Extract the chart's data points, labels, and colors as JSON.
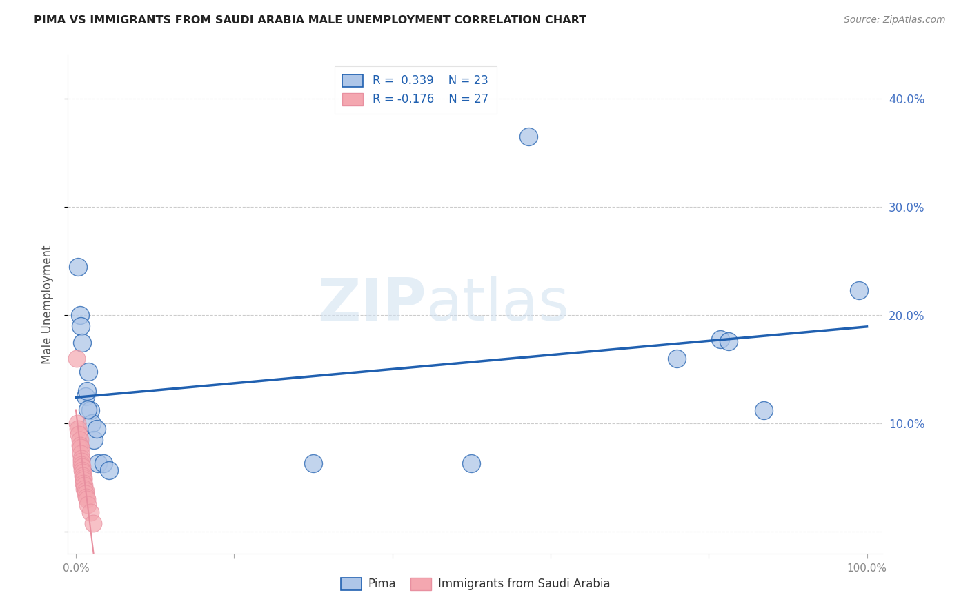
{
  "title": "PIMA VS IMMIGRANTS FROM SAUDI ARABIA MALE UNEMPLOYMENT CORRELATION CHART",
  "source": "Source: ZipAtlas.com",
  "ylabel": "Male Unemployment",
  "xlim": [
    -0.01,
    1.02
  ],
  "ylim": [
    -0.02,
    0.44
  ],
  "yticks": [
    0.0,
    0.1,
    0.2,
    0.3,
    0.4
  ],
  "ytick_labels": [
    "",
    "10.0%",
    "20.0%",
    "30.0%",
    "40.0%"
  ],
  "xticks": [
    0.0,
    0.2,
    0.4,
    0.6,
    0.8,
    1.0
  ],
  "xtick_labels": [
    "0.0%",
    "",
    "",
    "",
    "",
    "100.0%"
  ],
  "pima_R": 0.339,
  "pima_N": 23,
  "saudi_R": -0.176,
  "saudi_N": 27,
  "pima_color": "#aec6e8",
  "saudi_color": "#f4a7b0",
  "line_pima_color": "#2060b0",
  "line_saudi_color": "#e890a0",
  "watermark_zip": "ZIP",
  "watermark_atlas": "atlas",
  "pima_points": [
    [
      0.003,
      0.245
    ],
    [
      0.005,
      0.2
    ],
    [
      0.006,
      0.19
    ],
    [
      0.008,
      0.175
    ],
    [
      0.012,
      0.125
    ],
    [
      0.014,
      0.13
    ],
    [
      0.016,
      0.148
    ],
    [
      0.018,
      0.112
    ],
    [
      0.02,
      0.1
    ],
    [
      0.023,
      0.085
    ],
    [
      0.026,
      0.095
    ],
    [
      0.015,
      0.113
    ],
    [
      0.028,
      0.063
    ],
    [
      0.035,
      0.063
    ],
    [
      0.042,
      0.057
    ],
    [
      0.3,
      0.063
    ],
    [
      0.5,
      0.063
    ],
    [
      0.572,
      0.365
    ],
    [
      0.76,
      0.16
    ],
    [
      0.815,
      0.178
    ],
    [
      0.825,
      0.176
    ],
    [
      0.87,
      0.112
    ],
    [
      0.99,
      0.223
    ]
  ],
  "saudi_points": [
    [
      0.001,
      0.16
    ],
    [
      0.002,
      0.1
    ],
    [
      0.003,
      0.095
    ],
    [
      0.004,
      0.09
    ],
    [
      0.005,
      0.085
    ],
    [
      0.005,
      0.08
    ],
    [
      0.006,
      0.078
    ],
    [
      0.006,
      0.072
    ],
    [
      0.007,
      0.068
    ],
    [
      0.007,
      0.065
    ],
    [
      0.007,
      0.062
    ],
    [
      0.008,
      0.06
    ],
    [
      0.008,
      0.057
    ],
    [
      0.009,
      0.055
    ],
    [
      0.009,
      0.052
    ],
    [
      0.01,
      0.05
    ],
    [
      0.01,
      0.048
    ],
    [
      0.01,
      0.045
    ],
    [
      0.011,
      0.043
    ],
    [
      0.011,
      0.04
    ],
    [
      0.012,
      0.038
    ],
    [
      0.012,
      0.035
    ],
    [
      0.013,
      0.032
    ],
    [
      0.014,
      0.03
    ],
    [
      0.015,
      0.025
    ],
    [
      0.018,
      0.018
    ],
    [
      0.022,
      0.008
    ]
  ]
}
